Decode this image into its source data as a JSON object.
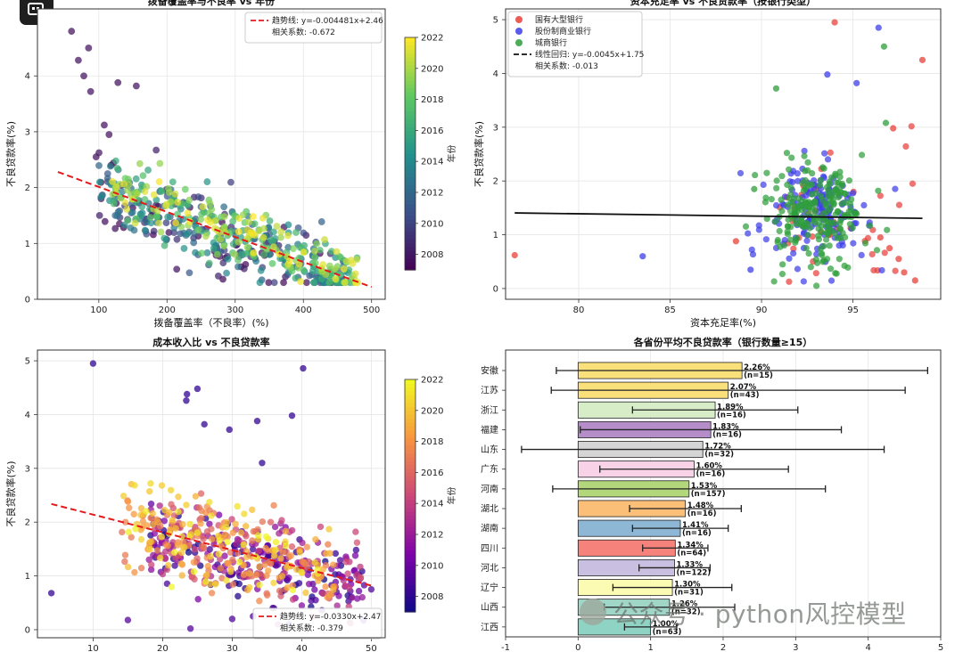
{
  "app": {
    "icon": "app-window-icon"
  },
  "watermark": {
    "text": "公众号 · python风控模型"
  },
  "chart_data": [
    {
      "type": "scatter",
      "title": "拨备覆盖率与不良率 vs 年份",
      "xlabel": "拨备覆盖率（不良率）(%)",
      "ylabel": "不良贷款率(%)",
      "xlim": [
        10,
        520
      ],
      "ylim": [
        0,
        5.2
      ],
      "xticks": [
        100,
        200,
        300,
        400,
        500
      ],
      "yticks": [
        0,
        1,
        2,
        3,
        4
      ],
      "grid": true,
      "legend_position": "top-right",
      "legend": [
        "趋势线: y=-0.004481x+2.46",
        "相关系数: -0.672"
      ],
      "colorbar": {
        "label": "年份",
        "colormap": "viridis",
        "range": [
          2007,
          2022
        ],
        "ticks": [
          2008,
          2010,
          2012,
          2014,
          2016,
          2018,
          2020,
          2022
        ]
      },
      "trendline": {
        "slope": -0.004481,
        "intercept": 2.46,
        "x_range": [
          40,
          500
        ],
        "color": "#e31a1c"
      },
      "x_trend_center": 250,
      "y_spread": 0.33,
      "n_points": 560,
      "seed": 11
    },
    {
      "type": "scatter",
      "title": "资本充足率 vs 不良贷款率（按银行类型）",
      "xlabel": "资本充足率(%)",
      "ylabel": "不良贷款率(%)",
      "xlim": [
        76,
        99.8
      ],
      "ylim": [
        -0.2,
        5.2
      ],
      "xticks": [
        80,
        85,
        90,
        95
      ],
      "yticks": [
        0,
        1,
        2,
        3,
        4,
        5
      ],
      "grid": true,
      "legend_position": "top-left",
      "series": [
        {
          "name": "国有大型银行",
          "color": "#e8403a",
          "count": 40
        },
        {
          "name": "股份制商业银行",
          "color": "#3d3ee8",
          "count": 160
        },
        {
          "name": "城商银行",
          "color": "#2e9e3a",
          "count": 220
        }
      ],
      "legend_extra": [
        "线性回归: y=-0.0045x+1.75",
        "相关系数: -0.013"
      ],
      "trendline": {
        "slope": -0.0045,
        "intercept": 1.75,
        "x_range": [
          76.5,
          98.8
        ],
        "color": "#111111"
      },
      "outliers": [
        [
          76.5,
          0.62
        ],
        [
          83.5,
          0.6
        ],
        [
          90.8,
          3.72
        ],
        [
          94,
          4.95
        ],
        [
          96.4,
          4.85
        ],
        [
          96.7,
          4.5
        ],
        [
          98.8,
          4.25
        ],
        [
          93.6,
          3.98
        ],
        [
          96.8,
          3.08
        ],
        [
          97.2,
          2.98
        ],
        [
          95.2,
          3.82
        ],
        [
          89.6,
          1.85
        ],
        [
          88.6,
          0.88
        ],
        [
          89.4,
          0.35
        ]
      ],
      "seed": 23
    },
    {
      "type": "scatter",
      "title": "成本收入比 vs 不良贷款率",
      "xlabel": "",
      "ylabel": "不良贷款率(%)",
      "xlim": [
        2,
        52
      ],
      "ylim": [
        -0.15,
        5.2
      ],
      "xticks": [
        10,
        20,
        30,
        40,
        50
      ],
      "yticks": [
        0,
        1,
        2,
        3,
        4,
        5
      ],
      "grid": true,
      "legend_position": "bottom-right",
      "legend": [
        "趋势线: y=-0.0330x+2.47",
        "相关系数: -0.379"
      ],
      "colorbar": {
        "label": "年份",
        "colormap": "plasma",
        "range": [
          2007,
          2022
        ],
        "ticks": [
          2008,
          2010,
          2012,
          2014,
          2016,
          2018,
          2020,
          2022
        ]
      },
      "trendline": {
        "slope": -0.033,
        "intercept": 2.47,
        "x_range": [
          4,
          50
        ],
        "color": "#e31a1c"
      },
      "outliers": [
        [
          10,
          4.95
        ],
        [
          4,
          0.68
        ],
        [
          40.2,
          4.86
        ],
        [
          23.5,
          4.38
        ],
        [
          23.4,
          4.26
        ],
        [
          25,
          4.48
        ],
        [
          29.6,
          3.72
        ],
        [
          26,
          3.82
        ],
        [
          33.6,
          3.88
        ],
        [
          38.6,
          3.98
        ],
        [
          34.3,
          3.1
        ]
      ],
      "n_points": 560,
      "seed": 37
    },
    {
      "type": "bar",
      "orientation": "horizontal",
      "title": "各省份平均不良贷款率（银行数量≥15）",
      "xlim": [
        -1,
        5
      ],
      "xticks": [
        -1,
        0,
        1,
        2,
        3,
        4,
        5
      ],
      "grid": true,
      "categories": [
        "安徽",
        "江苏",
        "浙江",
        "福建",
        "山东",
        "广东",
        "河南",
        "湖北",
        "湖南",
        "四川",
        "河北",
        "辽宁",
        "山西",
        "江西"
      ],
      "values": [
        2.26,
        2.07,
        1.89,
        1.83,
        1.72,
        1.6,
        1.53,
        1.48,
        1.41,
        1.34,
        1.33,
        1.3,
        1.26,
        1.0
      ],
      "value_labels": [
        "2.26%",
        "2.07%",
        "1.89%",
        "1.83%",
        "1.72%",
        "1.60%",
        "1.53%",
        "1.48%",
        "1.41%",
        "1.34%",
        "1.33%",
        "1.30%",
        "1.26%",
        "1.00%"
      ],
      "counts": [
        "(n=15)",
        "(n=43)",
        "(n=16)",
        "(n=16)",
        "(n=32)",
        "(n=16)",
        "(n=157)",
        "(n=16)",
        "(n=16)",
        "(n=64)",
        "(n=122)",
        "(n=31)",
        "(n=32)",
        "(n=63)"
      ],
      "errors": [
        2.56,
        2.44,
        1.14,
        1.8,
        2.5,
        1.3,
        1.88,
        0.77,
        0.66,
        0.45,
        0.49,
        0.82,
        0.9,
        0.36
      ],
      "colors": [
        "#f9e07a",
        "#f9e07a",
        "#d6edc8",
        "#b48dc9",
        "#d5d5d5",
        "#f8d3e7",
        "#b3d77b",
        "#fbbf78",
        "#8eb7d6",
        "#f6837b",
        "#c9bfe0",
        "#fcfbb3",
        "#9fd6c8",
        "#8fd3c4"
      ]
    }
  ]
}
